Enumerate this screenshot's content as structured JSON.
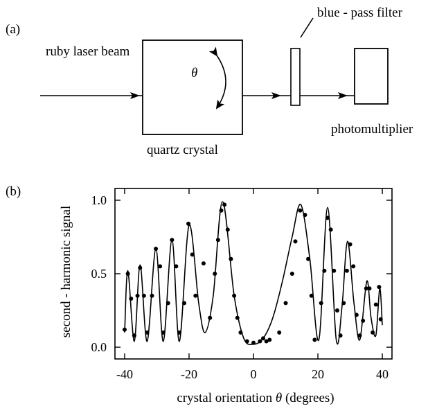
{
  "panel_a": {
    "label": "(a)",
    "laser_label": "ruby laser beam",
    "theta_symbol": "θ",
    "crystal_label": "quartz crystal",
    "filter_label": "blue - pass filter",
    "detector_label": "photomultiplier"
  },
  "panel_b": {
    "label": "(b)"
  },
  "chart_data": {
    "type": "scatter",
    "title": "",
    "xlabel_prefix": "crystal orientation",
    "xlabel_symbol": "θ",
    "xlabel_suffix": "(degrees)",
    "ylabel": "second - harmonic signal",
    "xlim": [
      -43,
      43
    ],
    "ylim": [
      -0.08,
      1.08
    ],
    "xticks": [
      -40,
      -20,
      0,
      20,
      40
    ],
    "xtick_labels": [
      "-40",
      "-20",
      "0",
      "20",
      "40"
    ],
    "yticks": [
      0,
      0.5,
      1.0
    ],
    "ytick_labels": [
      "0.0",
      "0.5",
      "1.0"
    ],
    "grid": false,
    "series": [
      {
        "kind": "points",
        "x": [
          -40,
          -39,
          -38,
          -37,
          -36,
          -35.2,
          -34,
          -33,
          -31.5,
          -30.3,
          -29,
          -28,
          -26.5,
          -25.3,
          -24,
          -23,
          -21.5,
          -20.2,
          -19,
          -18,
          -15.5,
          -13.5,
          -12,
          -11,
          -10,
          -9,
          -8,
          -7,
          -6,
          -5,
          -4,
          -2,
          0,
          2,
          3,
          4,
          5,
          8,
          10,
          12,
          13,
          14.5,
          16,
          17,
          18,
          19,
          21,
          22,
          23,
          24,
          25,
          26,
          27,
          28,
          29,
          30,
          31,
          32,
          33,
          34,
          35,
          36,
          37,
          38,
          39,
          39.5
        ],
        "y": [
          0.12,
          0.5,
          0.33,
          0.08,
          0.35,
          0.54,
          0.35,
          0.1,
          0.35,
          0.67,
          0.55,
          0.1,
          0.3,
          0.73,
          0.55,
          0.1,
          0.3,
          0.84,
          0.63,
          0.35,
          0.57,
          0.2,
          0.5,
          0.73,
          0.93,
          0.97,
          0.8,
          0.6,
          0.35,
          0.2,
          0.1,
          0.04,
          0.03,
          0.04,
          0.06,
          0.04,
          0.05,
          0.1,
          0.3,
          0.5,
          0.72,
          0.93,
          0.9,
          0.6,
          0.35,
          0.05,
          0.3,
          0.52,
          0.88,
          0.8,
          0.52,
          0.25,
          0.08,
          0.3,
          0.52,
          0.7,
          0.55,
          0.22,
          0.08,
          0.18,
          0.4,
          0.4,
          0.1,
          0.29,
          0.41,
          0.19
        ]
      },
      {
        "kind": "curve",
        "x": [
          -40,
          -39,
          -37,
          -35.2,
          -33,
          -30.3,
          -28,
          -25.3,
          -23,
          -20,
          -17,
          -15,
          -12.5,
          -9.6,
          -6,
          -3,
          0,
          3,
          6,
          9,
          12,
          14.7,
          17.5,
          20.3,
          23,
          25.7,
          27.5,
          29.2,
          31.2,
          33,
          35.2,
          36.5,
          38,
          39.2,
          40
        ],
        "y": [
          0.1,
          0.52,
          0.04,
          0.56,
          0.04,
          0.67,
          0.04,
          0.73,
          0.04,
          0.83,
          0.3,
          0.1,
          0.35,
          0.99,
          0.35,
          0.06,
          0.02,
          0.06,
          0.2,
          0.45,
          0.75,
          0.97,
          0.6,
          0.05,
          0.95,
          0.05,
          0.28,
          0.72,
          0.3,
          0.05,
          0.45,
          0.2,
          0.08,
          0.4,
          0.15
        ]
      }
    ]
  }
}
